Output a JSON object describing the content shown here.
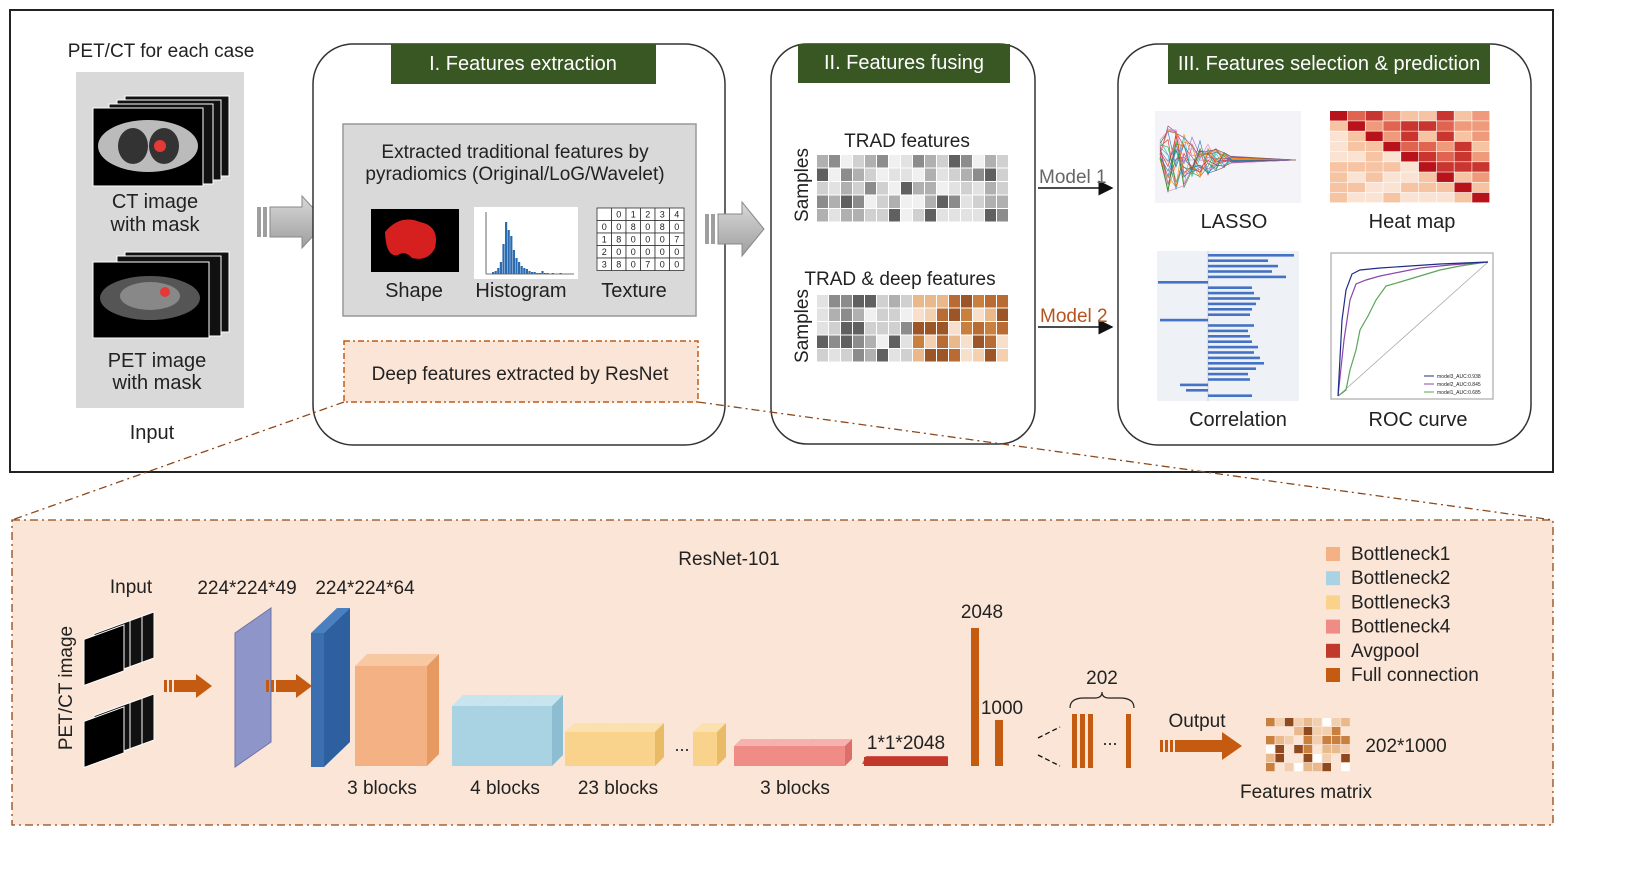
{
  "top": {
    "input_caption": "PET/CT for each case",
    "ct_label_1": "CT image",
    "ct_label_2": "with mask",
    "pet_label_1": "PET image",
    "pet_label_2": "with mask",
    "input_label": "Input"
  },
  "extraction": {
    "title": "I. Features extraction",
    "trad_line1": "Extracted traditional features by",
    "trad_line2": "pyradiomics (Original/LoG/Wavelet)",
    "shape": "Shape",
    "histogram": "Histogram",
    "texture": "Texture",
    "texture_grid": [
      [
        "",
        "0",
        "1",
        "2",
        "3",
        "4"
      ],
      [
        "0",
        "0",
        "8",
        "0",
        "8",
        "0"
      ],
      [
        "1",
        "8",
        "0",
        "0",
        "0",
        "7"
      ],
      [
        "2",
        "0",
        "0",
        "0",
        "0",
        "0"
      ],
      [
        "3",
        "8",
        "0",
        "7",
        "0",
        "0"
      ]
    ],
    "deep": "Deep features extracted by ResNet"
  },
  "fusing": {
    "title": "II. Features fusing",
    "trad_features": "TRAD features",
    "trad_deep_features": "TRAD & deep features",
    "samples": "Samples",
    "model1": "Model 1",
    "model2": "Model 2"
  },
  "selection": {
    "title": "III. Features selection & prediction",
    "lasso": "LASSO",
    "heatmap": "Heat map",
    "correlation": "Correlation",
    "roc": "ROC curve",
    "roc_legend": [
      "model3_AUC:0.938",
      "model2_AUC:0.845",
      "model1_AUC:0.685"
    ]
  },
  "resnet": {
    "title": "ResNet-101",
    "input": "Input",
    "side_label": "PET/CT image",
    "dim1": "224*224*49",
    "dim2": "224*224*64",
    "blocks1": "3 blocks",
    "blocks2": "4 blocks",
    "blocks3": "23 blocks",
    "blocks4": "3 blocks",
    "ellipsis": "...",
    "pool": "1*1*2048",
    "fc1": "2048",
    "fc2": "1000",
    "n202": "202",
    "output": "Output",
    "matrix_dim": "202*1000",
    "matrix_label": "Features matrix",
    "legend": [
      {
        "label": "Bottleneck1",
        "color": "#f4b183"
      },
      {
        "label": "Bottleneck2",
        "color": "#a9d3e3"
      },
      {
        "label": "Bottleneck3",
        "color": "#f9d38c"
      },
      {
        "label": "Bottleneck4",
        "color": "#f08c86"
      },
      {
        "label": "Avgpool",
        "color": "#c0392b"
      },
      {
        "label": "Full connection",
        "color": "#c55a11"
      }
    ]
  },
  "colors": {
    "title_bg": "#385723",
    "panel_bg": "#fbe5d6",
    "accent": "#c55a11",
    "layer_purple": "#8e96c9",
    "layer_blue": "#2e5f9e"
  }
}
